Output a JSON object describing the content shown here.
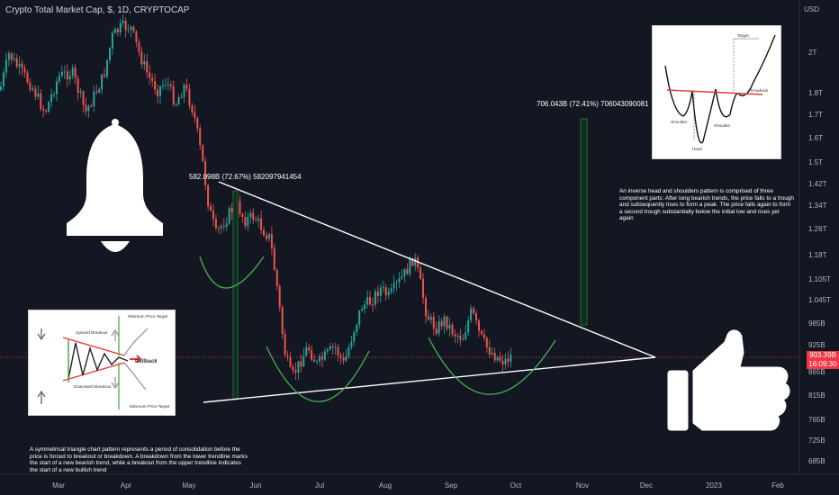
{
  "header": {
    "symbol_title": "Crypto Total Market Cap, $, 1D, CRYPTOCAP",
    "currency": "USD"
  },
  "price_axis": {
    "labels": [
      "2T",
      "1.8T",
      "1.7T",
      "1.6T",
      "1.5T",
      "1.42T",
      "1.34T",
      "1.26T",
      "1.18T",
      "1.105T",
      "1.045T",
      "985B",
      "925B",
      "865B",
      "815B",
      "765B",
      "725B",
      "685B"
    ]
  },
  "time_axis": {
    "labels": [
      "Mar",
      "Apr",
      "May",
      "Jun",
      "Jul",
      "Aug",
      "Sep",
      "Oct",
      "Nov",
      "Dec",
      "2023",
      "Feb"
    ]
  },
  "last_price": {
    "value": "903.39B",
    "countdown": "16:09:30"
  },
  "measurements": [
    {
      "text": "582.098B (72.67%) 582097941454"
    },
    {
      "text": "706.043B (72.41%) 706043090081"
    }
  ],
  "annotations": {
    "triangle_note": "A symmetrical triangle chart pattern represents a period of consolidation before the price is forced to breakout or breakdown. A breakdown from the lower trendline marks the start of a new bearish trend, while a breakout from the upper trendline indicates the start of a new bullish trend",
    "hs_note": "An inverse head and shoulders pattern is comprised of three component parts: After long bearish trends, the price falls to a trough and subsequently rises to form a peak. The price falls again to form a second trough substantially below the initial low and rises yet again"
  },
  "triangle_card": {
    "labels": [
      "Upward Breakout",
      "Minimum Price Target",
      "Pullback",
      "Downward Breakout",
      "Minimum Price Target"
    ]
  },
  "hs_card": {
    "labels": [
      "Target",
      "Throwback",
      "Shoulder",
      "Shoulder",
      "Head"
    ]
  },
  "icons": [
    "bell-icon",
    "thumbs-up-icon"
  ],
  "colors": {
    "background": "#131722",
    "up_candle": "#26a69a",
    "down_candle": "#ef5350",
    "trendline": "#ffffff",
    "arc": "#4caf50",
    "price_line": "#f23645"
  },
  "chart_data": {
    "type": "candlestick",
    "title": "Crypto Total Market Cap, $, 1D, CRYPTOCAP",
    "ylabel": "USD",
    "x_range": [
      "2022-02-22",
      "2023-02-15"
    ],
    "y_range": [
      "~660B",
      "~2.35T"
    ],
    "y_scale": "log",
    "grid": false,
    "last_close": "903.39B",
    "key_points": [
      {
        "date": "2022-03-28",
        "approx_high": "2.2T"
      },
      {
        "date": "2022-05-12",
        "approx_low": "1.15T"
      },
      {
        "date": "2022-06-18",
        "approx_low": "0.78T"
      },
      {
        "date": "2022-08-14",
        "approx_high": "1.2T"
      },
      {
        "date": "2022-09-30",
        "approx_close": "0.90T"
      }
    ]
  }
}
